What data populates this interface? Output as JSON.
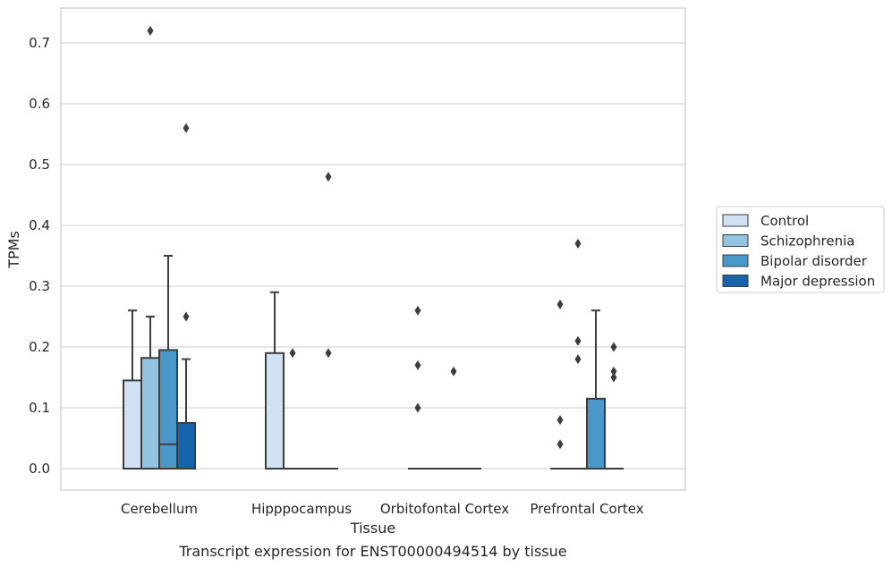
{
  "chart_data": {
    "type": "box",
    "title": "",
    "xlabel": "Tissue",
    "ylabel": "TPMs",
    "caption": "Transcript expression for ENST00000494514 by tissue",
    "ylim": [
      -0.035,
      0.76
    ],
    "yticks": [
      0.0,
      0.1,
      0.2,
      0.3,
      0.4,
      0.5,
      0.6,
      0.7
    ],
    "ytick_labels": [
      "0.0",
      "0.1",
      "0.2",
      "0.3",
      "0.4",
      "0.5",
      "0.6",
      "0.7"
    ],
    "grid": "horizontal",
    "legend_position": "right",
    "categories": [
      "Cerebellum",
      "Hipppocampus",
      "Orbitofontal Cortex",
      "Prefrontal Cortex"
    ],
    "series": [
      {
        "name": "Control",
        "color": "#d0e1f2",
        "boxes": [
          {
            "q1": 0.0,
            "median": 0.0,
            "q3": 0.145,
            "whisker_low": 0.0,
            "whisker_high": 0.26,
            "outliers": []
          },
          {
            "q1": 0.0,
            "median": 0.0,
            "q3": 0.19,
            "whisker_low": 0.0,
            "whisker_high": 0.29,
            "outliers": []
          },
          {
            "q1": 0.0,
            "median": 0.0,
            "q3": 0.0,
            "whisker_low": 0.0,
            "whisker_high": 0.0,
            "outliers": [
              0.1,
              0.17,
              0.26
            ]
          },
          {
            "q1": 0.0,
            "median": 0.0,
            "q3": 0.0,
            "whisker_low": 0.0,
            "whisker_high": 0.0,
            "outliers": [
              0.04,
              0.08,
              0.27
            ]
          }
        ]
      },
      {
        "name": "Schizophrenia",
        "color": "#94c4df",
        "boxes": [
          {
            "q1": 0.0,
            "median": 0.0,
            "q3": 0.182,
            "whisker_low": 0.0,
            "whisker_high": 0.25,
            "outliers": [
              0.72
            ]
          },
          {
            "q1": 0.0,
            "median": 0.0,
            "q3": 0.0,
            "whisker_low": 0.0,
            "whisker_high": 0.0,
            "outliers": [
              0.19
            ]
          },
          {
            "q1": 0.0,
            "median": 0.0,
            "q3": 0.0,
            "whisker_low": 0.0,
            "whisker_high": 0.0,
            "outliers": []
          },
          {
            "q1": 0.0,
            "median": 0.0,
            "q3": 0.0,
            "whisker_low": 0.0,
            "whisker_high": 0.0,
            "outliers": [
              0.18,
              0.21,
              0.37
            ]
          }
        ]
      },
      {
        "name": "Bipolar disorder",
        "color": "#4a98c9",
        "boxes": [
          {
            "q1": 0.0,
            "median": 0.04,
            "q3": 0.195,
            "whisker_low": 0.0,
            "whisker_high": 0.35,
            "outliers": []
          },
          {
            "q1": 0.0,
            "median": 0.0,
            "q3": 0.0,
            "whisker_low": 0.0,
            "whisker_high": 0.0,
            "outliers": []
          },
          {
            "q1": 0.0,
            "median": 0.0,
            "q3": 0.0,
            "whisker_low": 0.0,
            "whisker_high": 0.0,
            "outliers": [
              0.16
            ]
          },
          {
            "q1": 0.0,
            "median": 0.0,
            "q3": 0.115,
            "whisker_low": 0.0,
            "whisker_high": 0.26,
            "outliers": []
          }
        ]
      },
      {
        "name": "Major depression",
        "color": "#1764ab",
        "boxes": [
          {
            "q1": 0.0,
            "median": 0.0,
            "q3": 0.075,
            "whisker_low": 0.0,
            "whisker_high": 0.18,
            "outliers": [
              0.25,
              0.56
            ]
          },
          {
            "q1": 0.0,
            "median": 0.0,
            "q3": 0.0,
            "whisker_low": 0.0,
            "whisker_high": 0.0,
            "outliers": [
              0.19,
              0.48
            ]
          },
          {
            "q1": 0.0,
            "median": 0.0,
            "q3": 0.0,
            "whisker_low": 0.0,
            "whisker_high": 0.0,
            "outliers": []
          },
          {
            "q1": 0.0,
            "median": 0.0,
            "q3": 0.0,
            "whisker_low": 0.0,
            "whisker_high": 0.0,
            "outliers": [
              0.15,
              0.16,
              0.2
            ]
          }
        ]
      }
    ]
  }
}
